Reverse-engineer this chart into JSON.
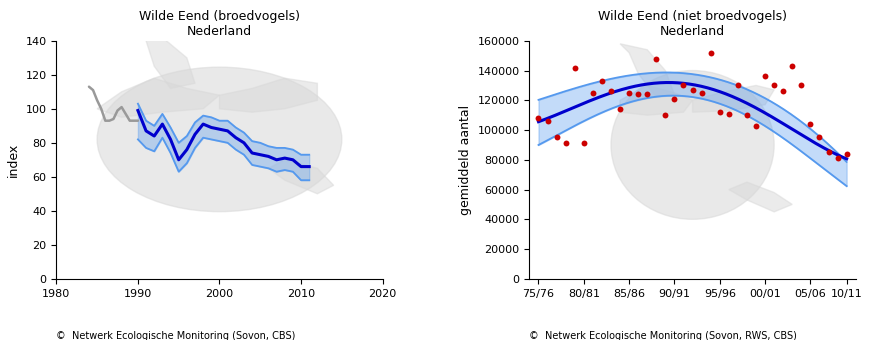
{
  "left_title": "Wilde Eend (broedvogels)\nNederland",
  "right_title": "Wilde Eend (niet broedvogels)\nNederland",
  "left_ylabel": "index",
  "right_ylabel": "gemiddeld aantal",
  "left_copyright": "©  Netwerk Ecologische Monitoring (Sovon, CBS)",
  "right_copyright": "©  Netwerk Ecologische Monitoring (Sovon, RWS, CBS)",
  "left_xlim": [
    1980,
    2020
  ],
  "left_ylim": [
    0,
    140
  ],
  "left_yticks": [
    0,
    20,
    40,
    60,
    80,
    100,
    120,
    140
  ],
  "left_xticks": [
    1980,
    1990,
    2000,
    2010,
    2020
  ],
  "right_xlim_labels": [
    "75/76",
    "80/81",
    "85/86",
    "90/91",
    "95/96",
    "00/01",
    "05/06",
    "10/11"
  ],
  "right_ylim": [
    0,
    160000
  ],
  "right_yticks": [
    0,
    20000,
    40000,
    60000,
    80000,
    100000,
    120000,
    140000,
    160000
  ],
  "gray_line_x": [
    1984,
    1984.5,
    1985,
    1985.5,
    1986,
    1986.5,
    1987,
    1987.5,
    1988,
    1988.5,
    1989,
    1989.5,
    1990
  ],
  "gray_line_y": [
    113,
    111,
    105,
    100,
    93,
    93,
    94,
    99,
    101,
    97,
    93,
    93,
    93
  ],
  "blue_main_x": [
    1990,
    1991,
    1992,
    1993,
    1994,
    1995,
    1996,
    1997,
    1998,
    1999,
    2000,
    2001,
    2002,
    2003,
    2004,
    2005,
    2006,
    2007,
    2008,
    2009,
    2010,
    2011
  ],
  "blue_main_y": [
    99,
    87,
    84,
    91,
    82,
    70,
    76,
    85,
    91,
    89,
    88,
    87,
    83,
    80,
    74,
    73,
    72,
    70,
    71,
    70,
    66,
    66
  ],
  "blue_upper_y": [
    103,
    93,
    90,
    97,
    89,
    80,
    84,
    92,
    96,
    95,
    93,
    93,
    89,
    86,
    81,
    80,
    78,
    77,
    77,
    76,
    73,
    73
  ],
  "blue_lower_y": [
    82,
    77,
    75,
    83,
    74,
    63,
    68,
    77,
    83,
    82,
    81,
    80,
    76,
    73,
    67,
    66,
    65,
    63,
    64,
    63,
    58,
    58
  ],
  "scatter_y": [
    108000,
    106000,
    95000,
    91000,
    142000,
    91000,
    125000,
    133000,
    126000,
    114000,
    125000,
    124000,
    124000,
    148000,
    110000,
    121000,
    130000,
    127000,
    125000,
    152000,
    112000,
    111000,
    130000,
    110000,
    103000,
    136000,
    130000,
    126000,
    143000,
    130000,
    104000,
    95000,
    85000,
    81000,
    84000
  ],
  "curve_y": [
    105000,
    107500,
    110000,
    113000,
    116000,
    119000,
    121500,
    123500,
    125000,
    127000,
    128500,
    129500,
    130200,
    130800,
    131000,
    131000,
    130800,
    130200,
    129000,
    127500,
    126000,
    124000,
    121500,
    119000,
    116000,
    113000,
    109500,
    105500,
    101000,
    96000,
    91000,
    86000,
    84000,
    84000,
    84000
  ],
  "curve_upper_y": [
    120000,
    122000,
    124000,
    126500,
    128500,
    130500,
    132000,
    133500,
    134500,
    135500,
    136500,
    137000,
    137500,
    138000,
    138200,
    138500,
    138200,
    138000,
    137000,
    135500,
    134000,
    132000,
    130000,
    127500,
    125000,
    122000,
    118500,
    114500,
    110000,
    105000,
    100000,
    95000,
    90000,
    84000,
    80000
  ],
  "curve_lower_y": [
    91000,
    93000,
    96000,
    99000,
    102000,
    106000,
    109000,
    112000,
    114500,
    117000,
    119000,
    120500,
    121500,
    122500,
    123000,
    123500,
    123500,
    122500,
    121000,
    119000,
    117000,
    115000,
    112000,
    109000,
    106000,
    103000,
    99500,
    95500,
    91000,
    86000,
    81000,
    76000,
    71000,
    66000,
    63000
  ],
  "dark_blue": "#0000CD",
  "light_blue": "#5599EE",
  "gray_line_color": "#999999",
  "scatter_color": "#CC0000",
  "bird_color": "#d8d8d8",
  "bg_color": "#ffffff"
}
